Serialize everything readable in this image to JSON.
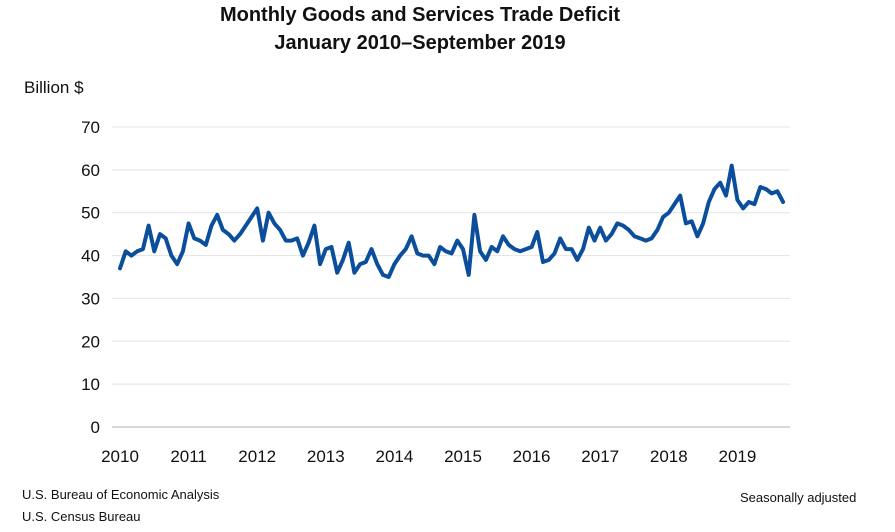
{
  "chart_data": {
    "type": "line",
    "title": "Monthly Goods and Services Trade Deficit",
    "subtitle": "January 2010–September 2019",
    "ylabel": "Billion $",
    "xlabel": "",
    "ylim": [
      0,
      70
    ],
    "yticks": [
      0,
      10,
      20,
      30,
      40,
      50,
      60,
      70
    ],
    "xticks": [
      "2010",
      "2011",
      "2012",
      "2013",
      "2014",
      "2015",
      "2016",
      "2017",
      "2018",
      "2019"
    ],
    "grid": true,
    "x_start": "2010-01",
    "x_end": "2019-09",
    "color": "#0b4f9c",
    "values": [
      37,
      41,
      40,
      41,
      41.5,
      47,
      41,
      45,
      44,
      40,
      38,
      41,
      47.5,
      44,
      43.5,
      42.5,
      47,
      49.5,
      46,
      45,
      43.5,
      45,
      47,
      49,
      51,
      43.5,
      50,
      47.5,
      46,
      43.5,
      43.5,
      44,
      40,
      43,
      47,
      38,
      41.5,
      42,
      36,
      39,
      43,
      36,
      38,
      38.5,
      41.5,
      38,
      35.5,
      35,
      38,
      40,
      41.5,
      44.5,
      40.5,
      40,
      40,
      38,
      42,
      41,
      40.5,
      43.5,
      41.5,
      35.5,
      49.5,
      41,
      39,
      42,
      41,
      44.5,
      42.5,
      41.5,
      41,
      41.5,
      42,
      45.5,
      38.5,
      39,
      40.5,
      44,
      41.5,
      41.5,
      39,
      41.5,
      46.5,
      43.5,
      46.5,
      43.5,
      45,
      47.5,
      47,
      46,
      44.5,
      44,
      43.5,
      44,
      46,
      49,
      50,
      52,
      54,
      47.5,
      48,
      44.5,
      47.5,
      52.5,
      55.5,
      57,
      54,
      61,
      53,
      51,
      52.5,
      52,
      56,
      55.5,
      54.5,
      55,
      52.5
    ]
  },
  "footer": {
    "source1": "U.S. Bureau of Economic Analysis",
    "source2": "U.S. Census Bureau",
    "note": "Seasonally adjusted"
  }
}
